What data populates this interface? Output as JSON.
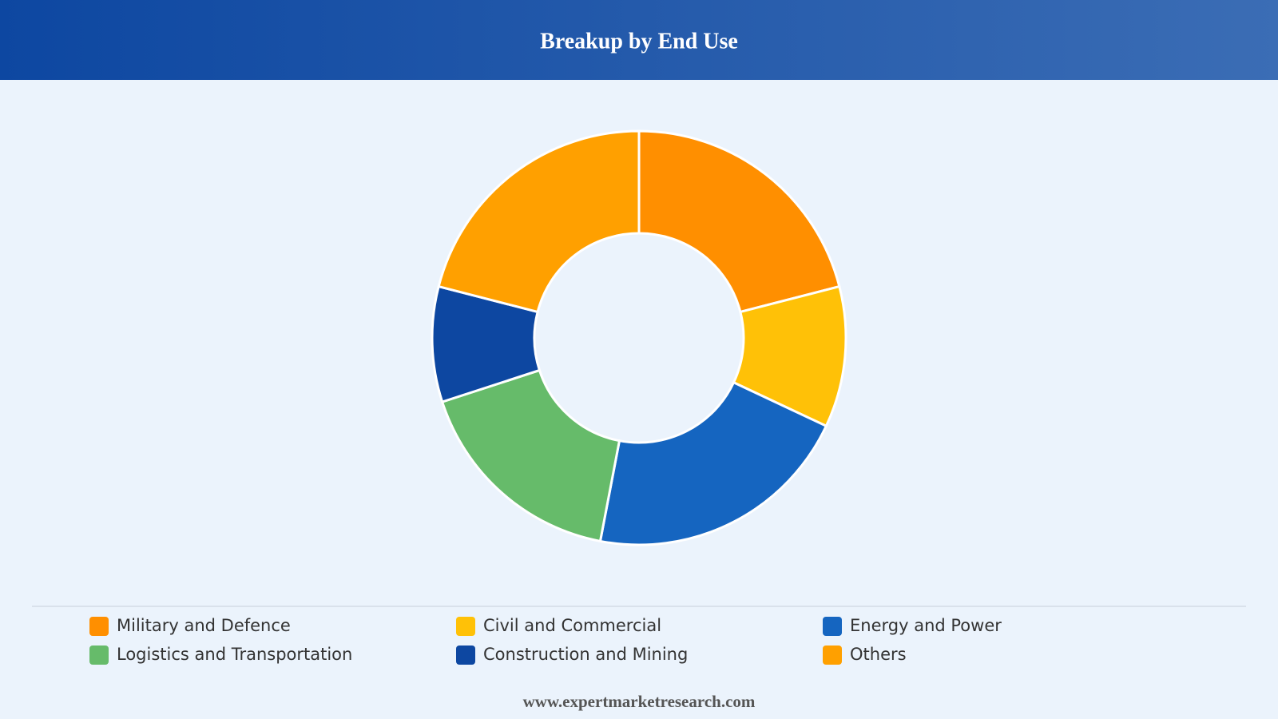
{
  "chart_data": {
    "type": "donut",
    "title": "Breakup by End Use",
    "categories": [
      "Military and Defence",
      "Civil and Commercial",
      "Energy and Power",
      "Logistics and Transportation",
      "Construction and Mining",
      "Others"
    ],
    "values": [
      21,
      11,
      21,
      17,
      9,
      21
    ],
    "colors": [
      "#FF8F00",
      "#FFC107",
      "#1565C0",
      "#66BB6A",
      "#0D47A1",
      "#FFA000"
    ],
    "legend": "bottom",
    "source": "www.expertmarketresearch.com"
  }
}
